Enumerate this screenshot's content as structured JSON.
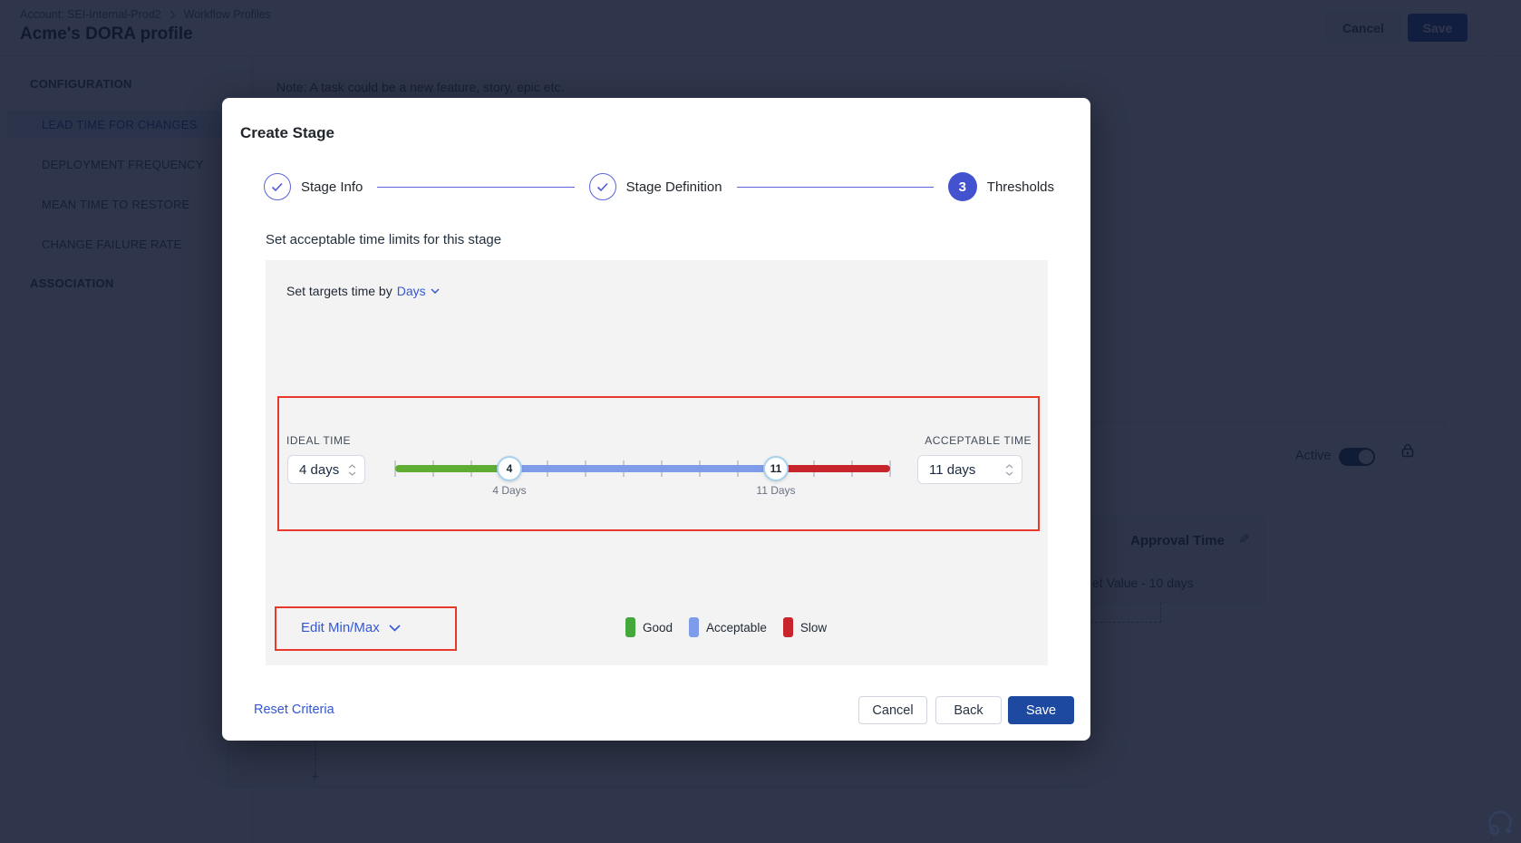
{
  "page": {
    "breadcrumb": {
      "account": "Account: SEI-Internal-Prod2",
      "section": "Workflow Profiles"
    },
    "title": "Acme's DORA profile",
    "actions": {
      "cancel": "Cancel",
      "save": "Save"
    },
    "sidebar": {
      "config_header": "CONFIGURATION",
      "items": [
        {
          "label": "LEAD TIME FOR CHANGES",
          "selected": true
        },
        {
          "label": "DEPLOYMENT FREQUENCY",
          "selected": false
        },
        {
          "label": "MEAN TIME TO RESTORE",
          "selected": false
        },
        {
          "label": "CHANGE FAILURE RATE",
          "selected": false
        }
      ],
      "association_header": "ASSOCIATION"
    },
    "content": {
      "note": "Note: A task could be a new feature, story, epic etc.",
      "active_label": "Active",
      "card": {
        "title": "Approval Time",
        "value_fragment": "et Value - 10 days"
      },
      "plus_node": "+"
    }
  },
  "modal": {
    "title": "Create Stage",
    "steps": [
      {
        "label": "Stage Info",
        "state": "done"
      },
      {
        "label": "Stage Definition",
        "state": "done"
      },
      {
        "label": "Thresholds",
        "state": "active",
        "number": "3"
      }
    ],
    "subtitle": "Set acceptable time limits for this stage",
    "panel": {
      "set_targets_label": "Set targets time by",
      "unit_value": "Days",
      "ideal": {
        "label": "IDEAL TIME",
        "value": "4 days"
      },
      "acceptable": {
        "label": "ACCEPTABLE TIME",
        "value": "11 days"
      },
      "edit_minmax_label": "Edit Min/Max",
      "legend": [
        {
          "label": "Good",
          "color": "#44a83a"
        },
        {
          "label": "Acceptable",
          "color": "#7e9ce9"
        },
        {
          "label": "Slow",
          "color": "#c8242b"
        }
      ]
    },
    "slider": {
      "min_day": 1,
      "max_day": 14,
      "ideal_day": 4,
      "acceptable_day": 11,
      "handle1_text": "4",
      "handle2_text": "11",
      "handle1_label": "4 Days",
      "handle2_label": "11 Days",
      "colors": {
        "good": "#5fae33",
        "acceptable": "#7e9ce9",
        "slow": "#c8242b"
      }
    },
    "footer": {
      "reset": "Reset Criteria",
      "cancel": "Cancel",
      "back": "Back",
      "save": "Save"
    }
  }
}
